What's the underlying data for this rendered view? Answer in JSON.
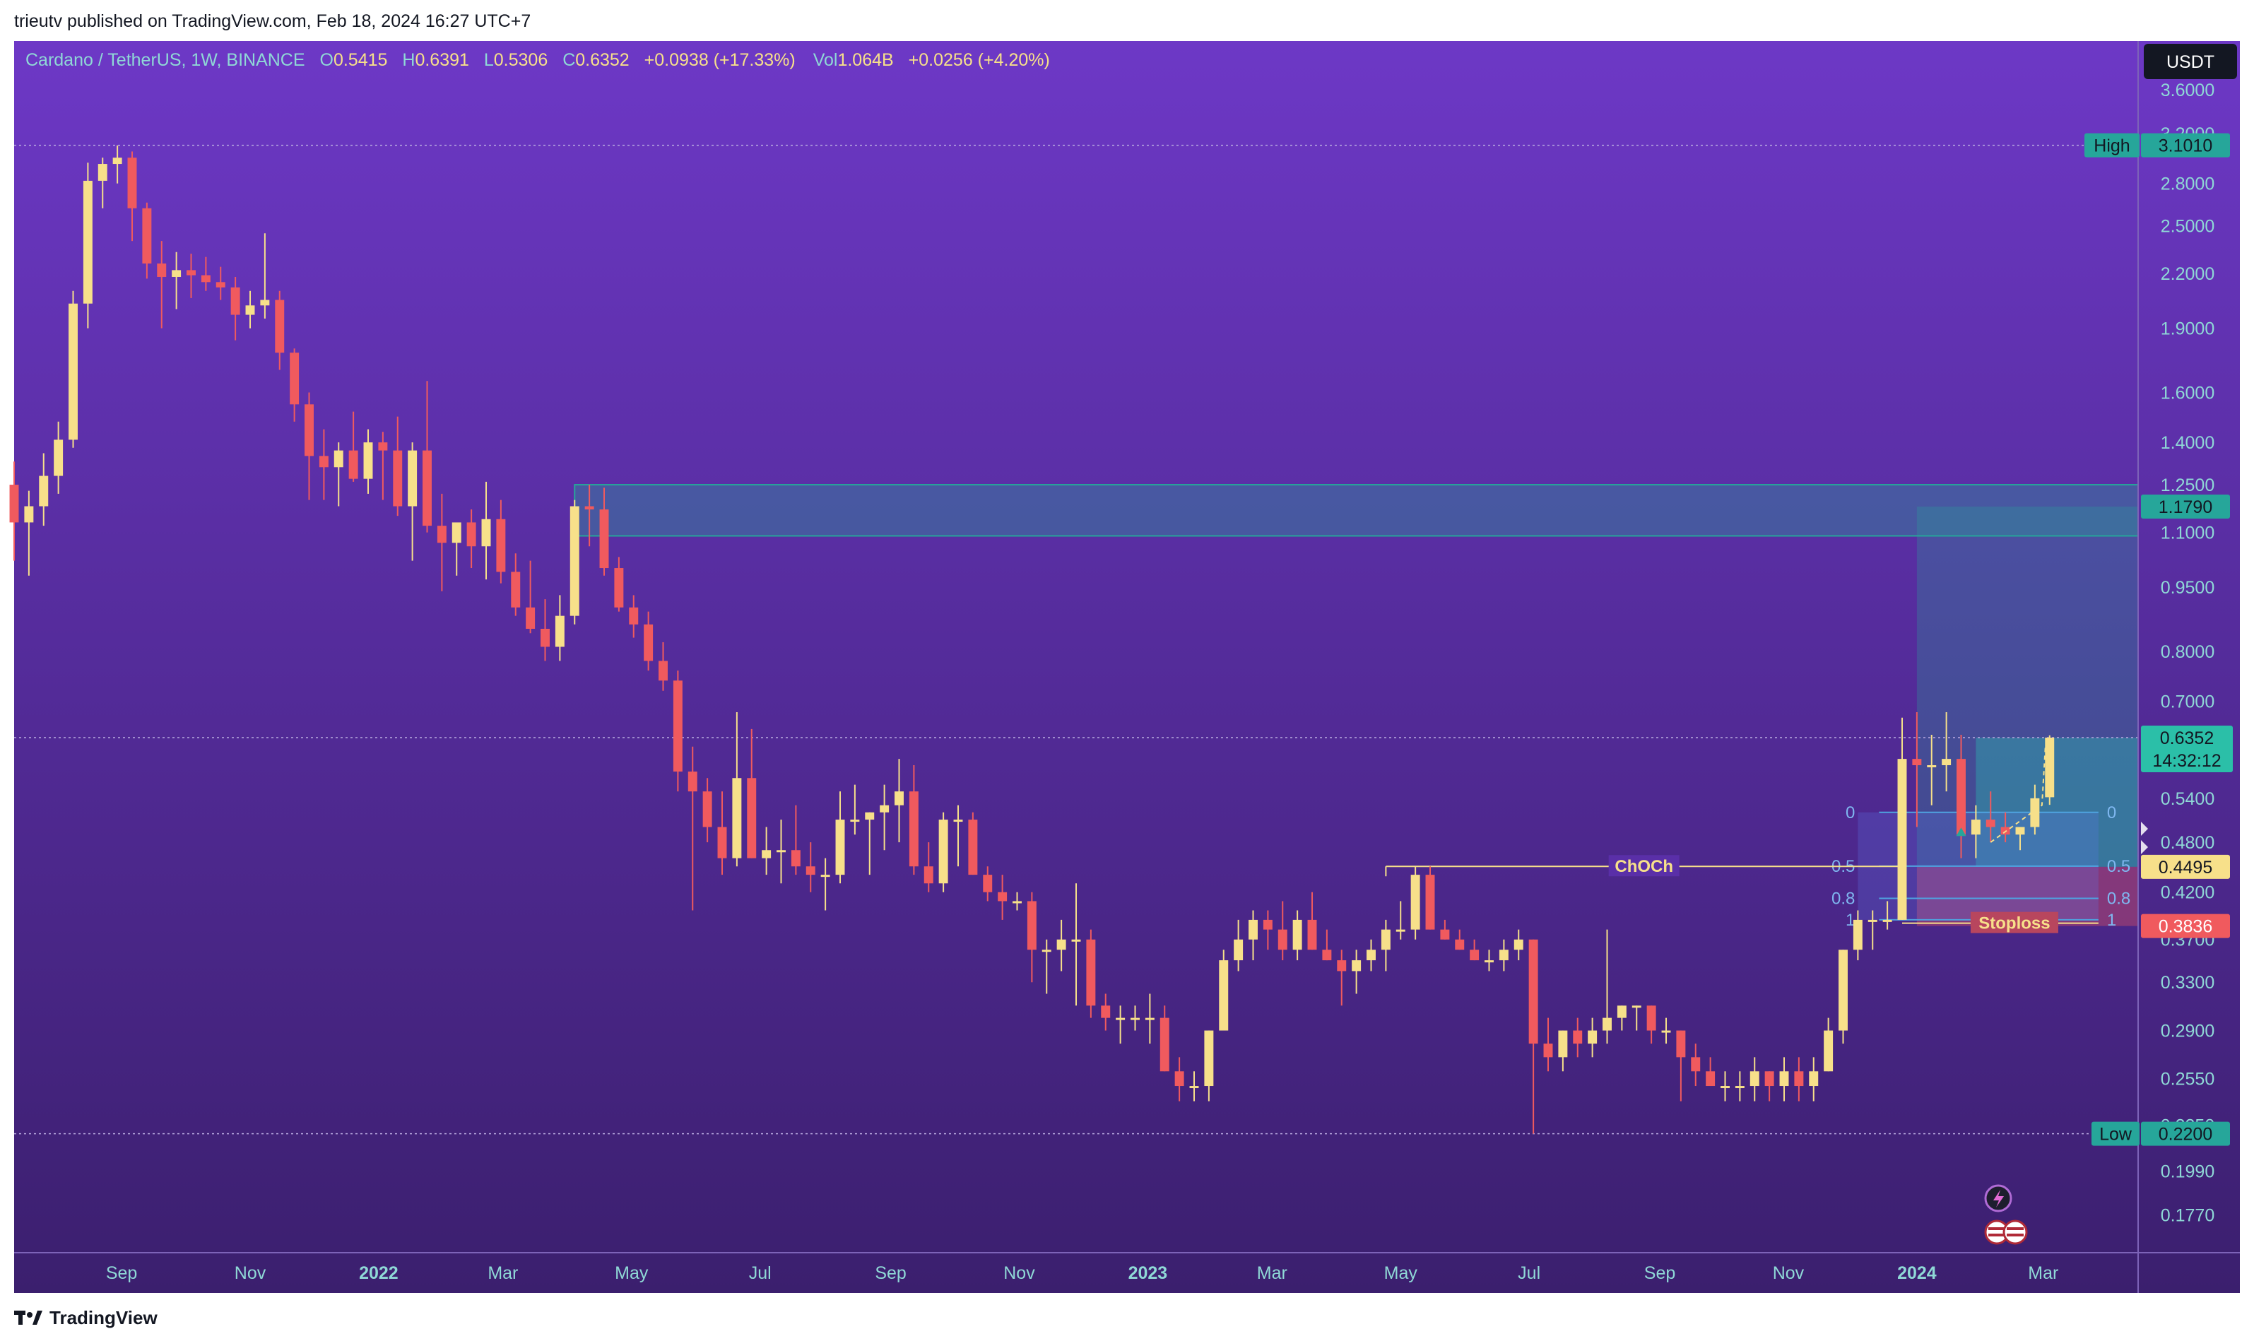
{
  "header": {
    "published_line": "trieutv published on TradingView.com, Feb 18, 2024 16:27 UTC+7"
  },
  "footer": {
    "brand": "TradingView"
  },
  "legend": {
    "symbol": "Cardano / TetherUS, 1W, BINANCE",
    "o_label": "O",
    "o_value": "0.5415",
    "h_label": "H",
    "h_value": "0.6391",
    "l_label": "L",
    "l_value": "0.5306",
    "c_label": "C",
    "c_value": "0.6352",
    "change": "+0.0938 (+17.33%)",
    "vol_label": "Vol",
    "vol_value": "1.064B",
    "vol_change": "+0.0256 (+4.20%)"
  },
  "currency_button": "USDT",
  "price_axis": {
    "ticks": [
      "3.6000",
      "3.2000",
      "2.8000",
      "2.5000",
      "2.2000",
      "1.9000",
      "1.6000",
      "1.4000",
      "1.2500",
      "1.1000",
      "0.9500",
      "0.8000",
      "0.7000",
      "0.5400",
      "0.4800",
      "0.4200",
      "0.3700",
      "0.3300",
      "0.2900",
      "0.2550",
      "0.2250",
      "0.1990",
      "0.1770"
    ]
  },
  "price_labels": {
    "high_tag": "High",
    "high_value": "3.1010",
    "zone_top": "1.1790",
    "last_price": "0.6352",
    "countdown": "14:32:12",
    "entry": "0.4495",
    "stop": "0.3836",
    "low_tag": "Low",
    "low_value": "0.2200"
  },
  "time_axis": {
    "labels": [
      "Sep",
      "Nov",
      "2022",
      "Mar",
      "May",
      "Jul",
      "Sep",
      "Nov",
      "2023",
      "Mar",
      "May",
      "Jul",
      "Sep",
      "Nov",
      "2024",
      "Mar"
    ]
  },
  "annotations": {
    "choch": "ChOCh",
    "stoploss": "Stoploss",
    "fib_left": [
      "0",
      "0.5",
      "0.8",
      "1"
    ],
    "fib_right": [
      "0",
      "0.5",
      "0.8",
      "1"
    ]
  },
  "colors": {
    "bull": "#f7e08a",
    "bear": "#f05a5e",
    "bg_top": "#6d38c6",
    "bg_bottom": "#3b1f6e",
    "teal": "#26a69a",
    "axis_text": "#8fd8d6"
  },
  "chart_data": {
    "type": "candlestick",
    "title": "Cardano / TetherUS, 1W, BINANCE",
    "y_scale": "log",
    "ylim": [
      0.16,
      4.1
    ],
    "x_range": [
      "2021-07-12",
      "2024-04-15"
    ],
    "candles": [
      {
        "t": "2021-07-12",
        "o": 1.25,
        "h": 1.33,
        "l": 1.02,
        "c": 1.13
      },
      {
        "t": "2021-07-19",
        "o": 1.13,
        "h": 1.23,
        "l": 0.98,
        "c": 1.18
      },
      {
        "t": "2021-07-26",
        "o": 1.18,
        "h": 1.36,
        "l": 1.12,
        "c": 1.28
      },
      {
        "t": "2021-08-02",
        "o": 1.28,
        "h": 1.48,
        "l": 1.22,
        "c": 1.41
      },
      {
        "t": "2021-08-09",
        "o": 1.41,
        "h": 2.1,
        "l": 1.38,
        "c": 2.03
      },
      {
        "t": "2021-08-16",
        "o": 2.03,
        "h": 2.96,
        "l": 1.9,
        "c": 2.82
      },
      {
        "t": "2021-08-23",
        "o": 2.82,
        "h": 3.0,
        "l": 2.62,
        "c": 2.95
      },
      {
        "t": "2021-08-30",
        "o": 2.95,
        "h": 3.1,
        "l": 2.8,
        "c": 3.0
      },
      {
        "t": "2021-09-06",
        "o": 3.0,
        "h": 3.05,
        "l": 2.4,
        "c": 2.62
      },
      {
        "t": "2021-09-13",
        "o": 2.62,
        "h": 2.66,
        "l": 2.17,
        "c": 2.26
      },
      {
        "t": "2021-09-20",
        "o": 2.26,
        "h": 2.4,
        "l": 1.9,
        "c": 2.18
      },
      {
        "t": "2021-09-27",
        "o": 2.18,
        "h": 2.33,
        "l": 2.0,
        "c": 2.22
      },
      {
        "t": "2021-10-04",
        "o": 2.22,
        "h": 2.32,
        "l": 2.06,
        "c": 2.19
      },
      {
        "t": "2021-10-11",
        "o": 2.19,
        "h": 2.3,
        "l": 2.1,
        "c": 2.15
      },
      {
        "t": "2021-10-18",
        "o": 2.15,
        "h": 2.24,
        "l": 2.05,
        "c": 2.12
      },
      {
        "t": "2021-10-25",
        "o": 2.12,
        "h": 2.18,
        "l": 1.84,
        "c": 1.97
      },
      {
        "t": "2021-11-01",
        "o": 1.97,
        "h": 2.1,
        "l": 1.9,
        "c": 2.02
      },
      {
        "t": "2021-11-08",
        "o": 2.02,
        "h": 2.45,
        "l": 1.95,
        "c": 2.05
      },
      {
        "t": "2021-11-15",
        "o": 2.05,
        "h": 2.1,
        "l": 1.7,
        "c": 1.78
      },
      {
        "t": "2021-11-22",
        "o": 1.78,
        "h": 1.8,
        "l": 1.48,
        "c": 1.55
      },
      {
        "t": "2021-11-29",
        "o": 1.55,
        "h": 1.6,
        "l": 1.2,
        "c": 1.35
      },
      {
        "t": "2021-12-06",
        "o": 1.35,
        "h": 1.45,
        "l": 1.2,
        "c": 1.31
      },
      {
        "t": "2021-12-13",
        "o": 1.31,
        "h": 1.4,
        "l": 1.18,
        "c": 1.37
      },
      {
        "t": "2021-12-20",
        "o": 1.37,
        "h": 1.52,
        "l": 1.26,
        "c": 1.27
      },
      {
        "t": "2021-12-27",
        "o": 1.27,
        "h": 1.45,
        "l": 1.22,
        "c": 1.4
      },
      {
        "t": "2022-01-03",
        "o": 1.4,
        "h": 1.44,
        "l": 1.2,
        "c": 1.37
      },
      {
        "t": "2022-01-10",
        "o": 1.37,
        "h": 1.5,
        "l": 1.15,
        "c": 1.18
      },
      {
        "t": "2022-01-17",
        "o": 1.18,
        "h": 1.4,
        "l": 1.02,
        "c": 1.37
      },
      {
        "t": "2022-01-24",
        "o": 1.37,
        "h": 1.65,
        "l": 1.1,
        "c": 1.12
      },
      {
        "t": "2022-01-31",
        "o": 1.12,
        "h": 1.22,
        "l": 0.94,
        "c": 1.07
      },
      {
        "t": "2022-02-07",
        "o": 1.07,
        "h": 1.12,
        "l": 0.98,
        "c": 1.13
      },
      {
        "t": "2022-02-14",
        "o": 1.13,
        "h": 1.17,
        "l": 1.0,
        "c": 1.06
      },
      {
        "t": "2022-02-21",
        "o": 1.06,
        "h": 1.26,
        "l": 0.97,
        "c": 1.14
      },
      {
        "t": "2022-02-28",
        "o": 1.14,
        "h": 1.2,
        "l": 0.96,
        "c": 0.99
      },
      {
        "t": "2022-03-07",
        "o": 0.99,
        "h": 1.04,
        "l": 0.88,
        "c": 0.9
      },
      {
        "t": "2022-03-14",
        "o": 0.9,
        "h": 1.02,
        "l": 0.84,
        "c": 0.85
      },
      {
        "t": "2022-03-21",
        "o": 0.85,
        "h": 0.92,
        "l": 0.78,
        "c": 0.81
      },
      {
        "t": "2022-03-28",
        "o": 0.81,
        "h": 0.93,
        "l": 0.78,
        "c": 0.88
      },
      {
        "t": "2022-04-04",
        "o": 0.88,
        "h": 1.2,
        "l": 0.86,
        "c": 1.18
      },
      {
        "t": "2022-04-11",
        "o": 1.18,
        "h": 1.25,
        "l": 1.06,
        "c": 1.17
      },
      {
        "t": "2022-04-18",
        "o": 1.17,
        "h": 1.24,
        "l": 0.98,
        "c": 1.0
      },
      {
        "t": "2022-04-25",
        "o": 1.0,
        "h": 1.03,
        "l": 0.89,
        "c": 0.9
      },
      {
        "t": "2022-05-02",
        "o": 0.9,
        "h": 0.93,
        "l": 0.83,
        "c": 0.86
      },
      {
        "t": "2022-05-09",
        "o": 0.86,
        "h": 0.89,
        "l": 0.76,
        "c": 0.78
      },
      {
        "t": "2022-05-16",
        "o": 0.78,
        "h": 0.82,
        "l": 0.72,
        "c": 0.74
      },
      {
        "t": "2022-05-23",
        "o": 0.74,
        "h": 0.76,
        "l": 0.55,
        "c": 0.58
      },
      {
        "t": "2022-05-30",
        "o": 0.58,
        "h": 0.62,
        "l": 0.4,
        "c": 0.55
      },
      {
        "t": "2022-06-06",
        "o": 0.55,
        "h": 0.57,
        "l": 0.48,
        "c": 0.5
      },
      {
        "t": "2022-06-13",
        "o": 0.5,
        "h": 0.55,
        "l": 0.44,
        "c": 0.46
      },
      {
        "t": "2022-06-20",
        "o": 0.46,
        "h": 0.68,
        "l": 0.45,
        "c": 0.57
      },
      {
        "t": "2022-06-27",
        "o": 0.57,
        "h": 0.65,
        "l": 0.46,
        "c": 0.46
      },
      {
        "t": "2022-07-04",
        "o": 0.46,
        "h": 0.5,
        "l": 0.44,
        "c": 0.47
      },
      {
        "t": "2022-07-11",
        "o": 0.47,
        "h": 0.51,
        "l": 0.43,
        "c": 0.47
      },
      {
        "t": "2022-07-18",
        "o": 0.47,
        "h": 0.53,
        "l": 0.44,
        "c": 0.45
      },
      {
        "t": "2022-07-25",
        "o": 0.45,
        "h": 0.48,
        "l": 0.42,
        "c": 0.44
      },
      {
        "t": "2022-08-01",
        "o": 0.44,
        "h": 0.46,
        "l": 0.4,
        "c": 0.44
      },
      {
        "t": "2022-08-08",
        "o": 0.44,
        "h": 0.55,
        "l": 0.43,
        "c": 0.51
      },
      {
        "t": "2022-08-15",
        "o": 0.51,
        "h": 0.56,
        "l": 0.49,
        "c": 0.51
      },
      {
        "t": "2022-08-22",
        "o": 0.51,
        "h": 0.52,
        "l": 0.44,
        "c": 0.52
      },
      {
        "t": "2022-08-29",
        "o": 0.52,
        "h": 0.56,
        "l": 0.47,
        "c": 0.53
      },
      {
        "t": "2022-09-05",
        "o": 0.53,
        "h": 0.6,
        "l": 0.48,
        "c": 0.55
      },
      {
        "t": "2022-09-12",
        "o": 0.55,
        "h": 0.59,
        "l": 0.44,
        "c": 0.45
      },
      {
        "t": "2022-09-19",
        "o": 0.45,
        "h": 0.48,
        "l": 0.42,
        "c": 0.43
      },
      {
        "t": "2022-09-26",
        "o": 0.43,
        "h": 0.52,
        "l": 0.42,
        "c": 0.51
      },
      {
        "t": "2022-10-03",
        "o": 0.51,
        "h": 0.53,
        "l": 0.45,
        "c": 0.51
      },
      {
        "t": "2022-10-10",
        "o": 0.51,
        "h": 0.52,
        "l": 0.44,
        "c": 0.44
      },
      {
        "t": "2022-10-17",
        "o": 0.44,
        "h": 0.45,
        "l": 0.41,
        "c": 0.42
      },
      {
        "t": "2022-10-24",
        "o": 0.42,
        "h": 0.44,
        "l": 0.39,
        "c": 0.41
      },
      {
        "t": "2022-10-31",
        "o": 0.41,
        "h": 0.42,
        "l": 0.4,
        "c": 0.41
      },
      {
        "t": "2022-11-07",
        "o": 0.41,
        "h": 0.42,
        "l": 0.33,
        "c": 0.36
      },
      {
        "t": "2022-11-14",
        "o": 0.36,
        "h": 0.37,
        "l": 0.32,
        "c": 0.36
      },
      {
        "t": "2022-11-21",
        "o": 0.36,
        "h": 0.39,
        "l": 0.34,
        "c": 0.37
      },
      {
        "t": "2022-11-28",
        "o": 0.37,
        "h": 0.43,
        "l": 0.31,
        "c": 0.37
      },
      {
        "t": "2022-12-05",
        "o": 0.37,
        "h": 0.38,
        "l": 0.3,
        "c": 0.31
      },
      {
        "t": "2022-12-12",
        "o": 0.31,
        "h": 0.32,
        "l": 0.29,
        "c": 0.3
      },
      {
        "t": "2022-12-19",
        "o": 0.3,
        "h": 0.31,
        "l": 0.28,
        "c": 0.3
      },
      {
        "t": "2022-12-26",
        "o": 0.3,
        "h": 0.31,
        "l": 0.29,
        "c": 0.3
      },
      {
        "t": "2023-01-02",
        "o": 0.3,
        "h": 0.32,
        "l": 0.28,
        "c": 0.3
      },
      {
        "t": "2023-01-09",
        "o": 0.3,
        "h": 0.31,
        "l": 0.26,
        "c": 0.26
      },
      {
        "t": "2023-01-16",
        "o": 0.26,
        "h": 0.27,
        "l": 0.24,
        "c": 0.25
      },
      {
        "t": "2023-01-23",
        "o": 0.25,
        "h": 0.26,
        "l": 0.24,
        "c": 0.25
      },
      {
        "t": "2023-01-30",
        "o": 0.25,
        "h": 0.29,
        "l": 0.24,
        "c": 0.29
      },
      {
        "t": "2023-02-06",
        "o": 0.29,
        "h": 0.36,
        "l": 0.29,
        "c": 0.35
      },
      {
        "t": "2023-02-13",
        "o": 0.35,
        "h": 0.39,
        "l": 0.34,
        "c": 0.37
      },
      {
        "t": "2023-02-20",
        "o": 0.37,
        "h": 0.4,
        "l": 0.35,
        "c": 0.39
      },
      {
        "t": "2023-02-27",
        "o": 0.39,
        "h": 0.4,
        "l": 0.36,
        "c": 0.38
      },
      {
        "t": "2023-03-06",
        "o": 0.38,
        "h": 0.41,
        "l": 0.35,
        "c": 0.36
      },
      {
        "t": "2023-03-13",
        "o": 0.36,
        "h": 0.4,
        "l": 0.35,
        "c": 0.39
      },
      {
        "t": "2023-03-20",
        "o": 0.39,
        "h": 0.42,
        "l": 0.36,
        "c": 0.36
      },
      {
        "t": "2023-03-27",
        "o": 0.36,
        "h": 0.38,
        "l": 0.35,
        "c": 0.35
      },
      {
        "t": "2023-04-03",
        "o": 0.35,
        "h": 0.36,
        "l": 0.31,
        "c": 0.34
      },
      {
        "t": "2023-04-10",
        "o": 0.34,
        "h": 0.36,
        "l": 0.32,
        "c": 0.35
      },
      {
        "t": "2023-04-17",
        "o": 0.35,
        "h": 0.37,
        "l": 0.34,
        "c": 0.36
      },
      {
        "t": "2023-04-24",
        "o": 0.36,
        "h": 0.39,
        "l": 0.34,
        "c": 0.38
      },
      {
        "t": "2023-05-01",
        "o": 0.38,
        "h": 0.41,
        "l": 0.37,
        "c": 0.38
      },
      {
        "t": "2023-05-08",
        "o": 0.38,
        "h": 0.45,
        "l": 0.37,
        "c": 0.44
      },
      {
        "t": "2023-05-15",
        "o": 0.44,
        "h": 0.45,
        "l": 0.38,
        "c": 0.38
      },
      {
        "t": "2023-05-22",
        "o": 0.38,
        "h": 0.39,
        "l": 0.37,
        "c": 0.37
      },
      {
        "t": "2023-05-29",
        "o": 0.37,
        "h": 0.38,
        "l": 0.36,
        "c": 0.36
      },
      {
        "t": "2023-06-05",
        "o": 0.36,
        "h": 0.37,
        "l": 0.35,
        "c": 0.35
      },
      {
        "t": "2023-06-12",
        "o": 0.35,
        "h": 0.36,
        "l": 0.34,
        "c": 0.35
      },
      {
        "t": "2023-06-19",
        "o": 0.35,
        "h": 0.37,
        "l": 0.34,
        "c": 0.36
      },
      {
        "t": "2023-06-26",
        "o": 0.36,
        "h": 0.38,
        "l": 0.35,
        "c": 0.37
      },
      {
        "t": "2023-07-03",
        "o": 0.37,
        "h": 0.37,
        "l": 0.22,
        "c": 0.28
      },
      {
        "t": "2023-07-10",
        "o": 0.28,
        "h": 0.3,
        "l": 0.26,
        "c": 0.27
      },
      {
        "t": "2023-07-17",
        "o": 0.27,
        "h": 0.29,
        "l": 0.26,
        "c": 0.29
      },
      {
        "t": "2023-07-24",
        "o": 0.29,
        "h": 0.3,
        "l": 0.27,
        "c": 0.28
      },
      {
        "t": "2023-07-31",
        "o": 0.28,
        "h": 0.3,
        "l": 0.27,
        "c": 0.29
      },
      {
        "t": "2023-08-07",
        "o": 0.29,
        "h": 0.38,
        "l": 0.28,
        "c": 0.3
      },
      {
        "t": "2023-08-14",
        "o": 0.3,
        "h": 0.31,
        "l": 0.29,
        "c": 0.31
      },
      {
        "t": "2023-08-21",
        "o": 0.31,
        "h": 0.31,
        "l": 0.29,
        "c": 0.31
      },
      {
        "t": "2023-08-28",
        "o": 0.31,
        "h": 0.31,
        "l": 0.28,
        "c": 0.29
      },
      {
        "t": "2023-09-04",
        "o": 0.29,
        "h": 0.3,
        "l": 0.28,
        "c": 0.29
      },
      {
        "t": "2023-09-11",
        "o": 0.29,
        "h": 0.29,
        "l": 0.24,
        "c": 0.27
      },
      {
        "t": "2023-09-18",
        "o": 0.27,
        "h": 0.28,
        "l": 0.25,
        "c": 0.26
      },
      {
        "t": "2023-09-25",
        "o": 0.26,
        "h": 0.27,
        "l": 0.25,
        "c": 0.25
      },
      {
        "t": "2023-10-02",
        "o": 0.25,
        "h": 0.26,
        "l": 0.24,
        "c": 0.25
      },
      {
        "t": "2023-10-09",
        "o": 0.25,
        "h": 0.26,
        "l": 0.24,
        "c": 0.25
      },
      {
        "t": "2023-10-16",
        "o": 0.25,
        "h": 0.27,
        "l": 0.24,
        "c": 0.26
      },
      {
        "t": "2023-10-23",
        "o": 0.26,
        "h": 0.26,
        "l": 0.24,
        "c": 0.25
      },
      {
        "t": "2023-10-30",
        "o": 0.25,
        "h": 0.27,
        "l": 0.24,
        "c": 0.26
      },
      {
        "t": "2023-11-06",
        "o": 0.26,
        "h": 0.27,
        "l": 0.24,
        "c": 0.25
      },
      {
        "t": "2023-11-13",
        "o": 0.25,
        "h": 0.27,
        "l": 0.24,
        "c": 0.26
      },
      {
        "t": "2023-11-20",
        "o": 0.26,
        "h": 0.3,
        "l": 0.26,
        "c": 0.29
      },
      {
        "t": "2023-11-27",
        "o": 0.29,
        "h": 0.36,
        "l": 0.28,
        "c": 0.36
      },
      {
        "t": "2023-12-04",
        "o": 0.36,
        "h": 0.4,
        "l": 0.35,
        "c": 0.39
      },
      {
        "t": "2023-12-11",
        "o": 0.39,
        "h": 0.4,
        "l": 0.36,
        "c": 0.39
      },
      {
        "t": "2023-12-18",
        "o": 0.39,
        "h": 0.41,
        "l": 0.38,
        "c": 0.39
      },
      {
        "t": "2023-12-25",
        "o": 0.39,
        "h": 0.67,
        "l": 0.39,
        "c": 0.6
      },
      {
        "t": "2024-01-01",
        "o": 0.6,
        "h": 0.68,
        "l": 0.5,
        "c": 0.59
      },
      {
        "t": "2024-01-08",
        "o": 0.59,
        "h": 0.64,
        "l": 0.53,
        "c": 0.59
      },
      {
        "t": "2024-01-15",
        "o": 0.59,
        "h": 0.68,
        "l": 0.55,
        "c": 0.6
      },
      {
        "t": "2024-01-22",
        "o": 0.6,
        "h": 0.64,
        "l": 0.46,
        "c": 0.49
      },
      {
        "t": "2024-01-29",
        "o": 0.49,
        "h": 0.53,
        "l": 0.46,
        "c": 0.51
      },
      {
        "t": "2024-02-05",
        "o": 0.51,
        "h": 0.55,
        "l": 0.48,
        "c": 0.5
      },
      {
        "t": "2024-02-12",
        "o": 0.5,
        "h": 0.52,
        "l": 0.48,
        "c": 0.49
      },
      {
        "t": "2024-02-19",
        "o": 0.49,
        "h": 0.5,
        "l": 0.47,
        "c": 0.5
      },
      {
        "t": "2024-02-26",
        "o": 0.5,
        "h": 0.56,
        "l": 0.49,
        "c": 0.54
      },
      {
        "t": "2024-03-04",
        "o": 0.5415,
        "h": 0.6391,
        "l": 0.5306,
        "c": 0.6352
      }
    ],
    "horizontal_levels": [
      {
        "label": "High",
        "value": 3.101
      },
      {
        "label": "Low",
        "value": 0.22
      },
      {
        "label": "Last",
        "value": 0.6352
      }
    ],
    "zones": [
      {
        "from": "2022-04-04",
        "to": "2024-04-15",
        "low": 1.09,
        "high": 1.25
      },
      {
        "type": "long_position",
        "from": "2024-01-01",
        "to": "2024-04-15",
        "entry": 0.4495,
        "target": 1.179,
        "stop": 0.3836
      }
    ],
    "annotations": [
      "ChOCh",
      "Stoploss"
    ]
  }
}
